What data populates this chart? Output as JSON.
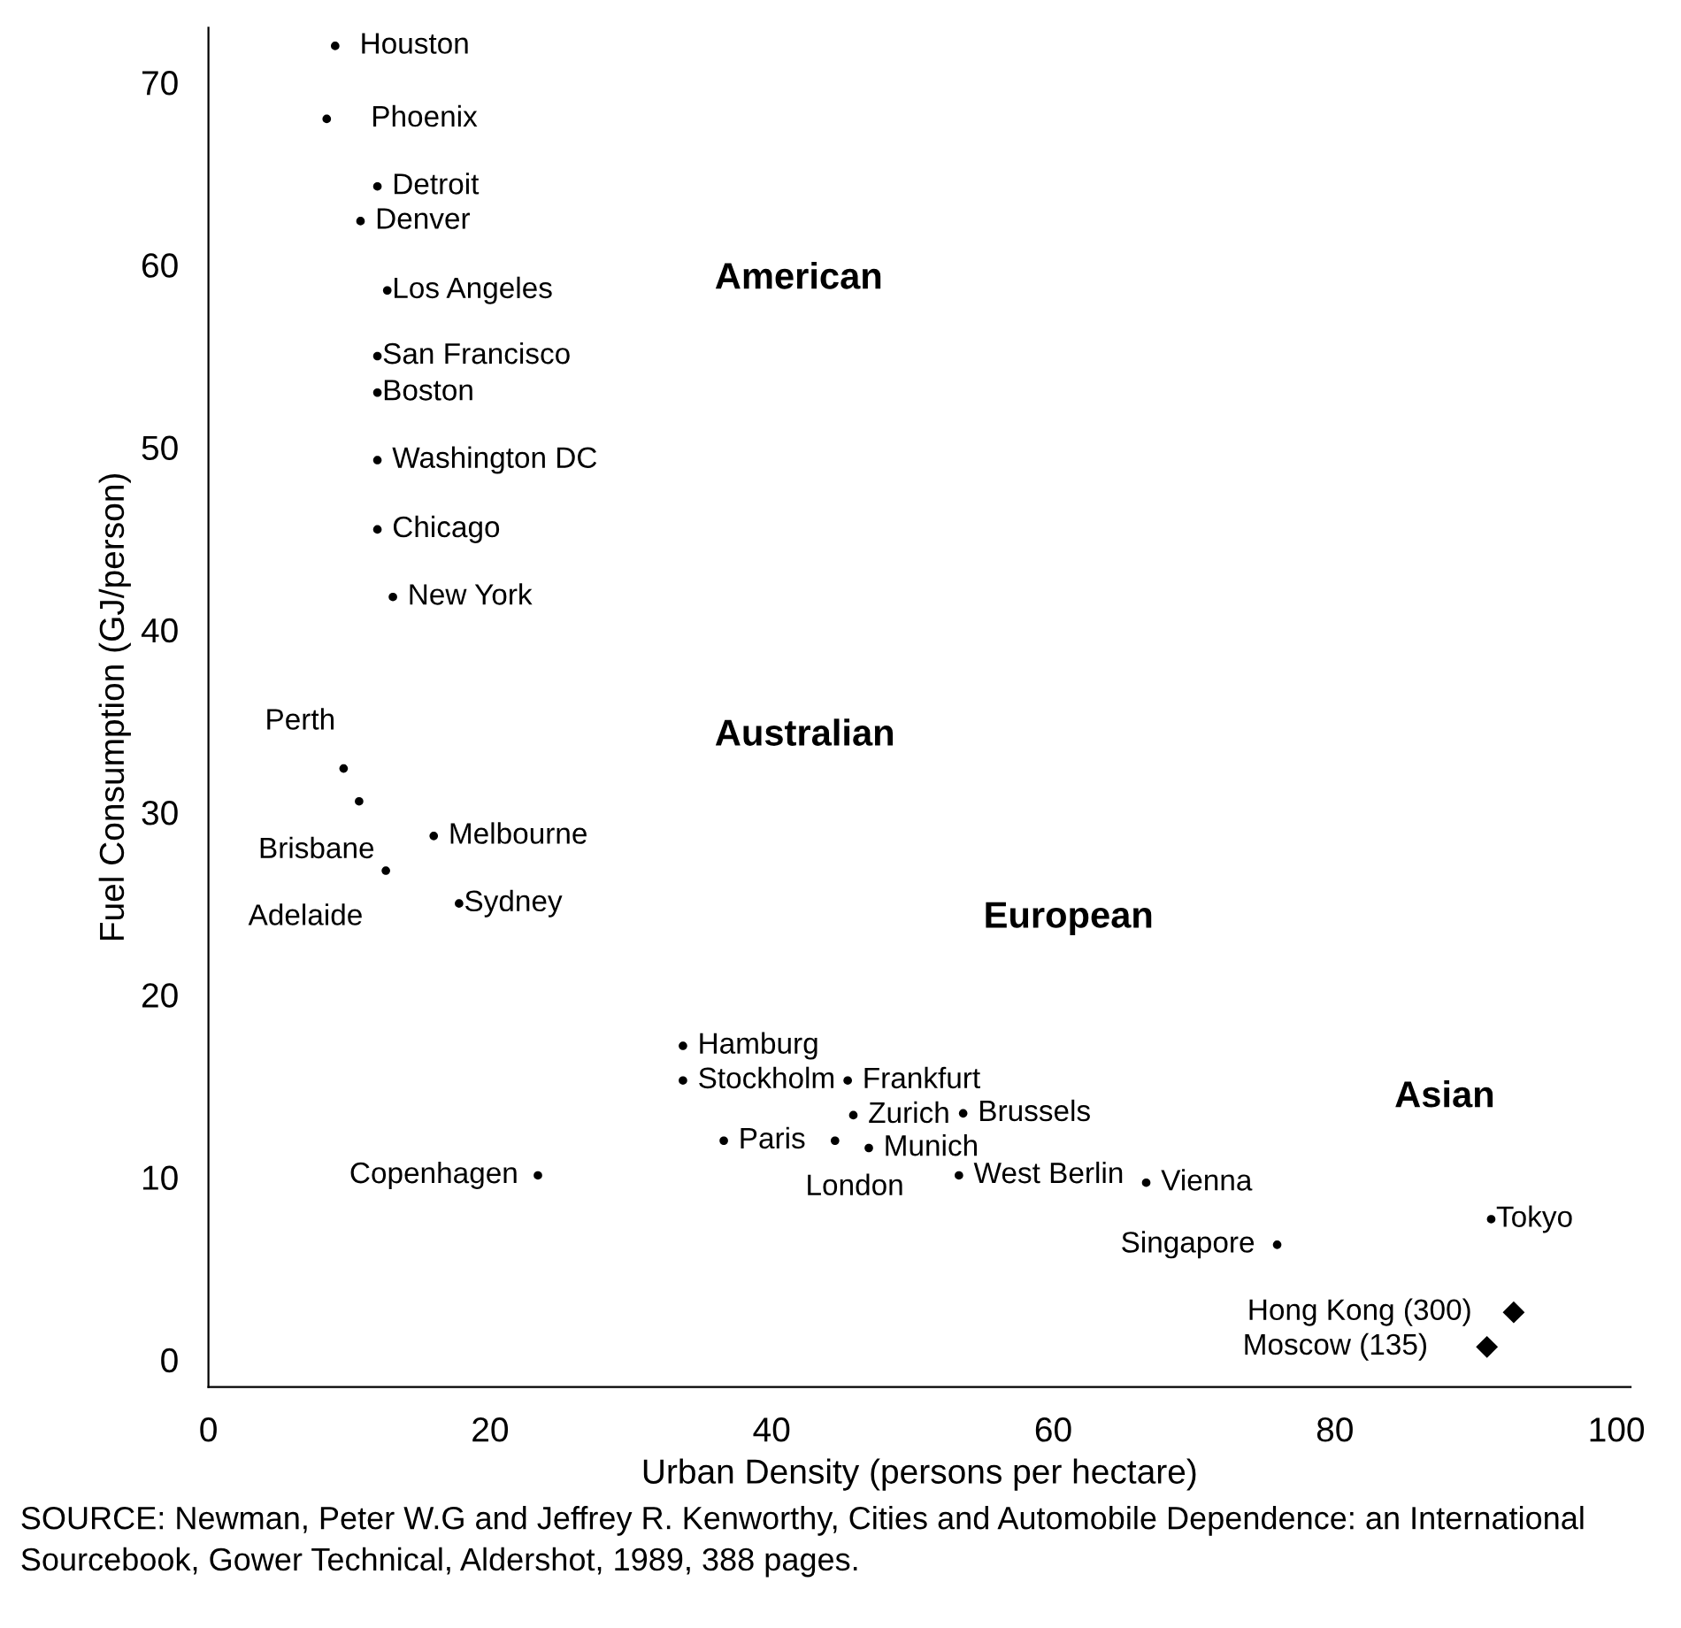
{
  "chart_data": {
    "type": "scatter",
    "xlabel": "Urban Density (persons per hectare)",
    "ylabel": "Fuel Consumption (GJ/person)",
    "xlim": [
      0,
      101
    ],
    "ylim": [
      -1.5,
      73
    ],
    "xticks": [
      0,
      20,
      40,
      60,
      80,
      100
    ],
    "yticks": [
      0,
      10,
      20,
      30,
      40,
      50,
      60,
      70
    ],
    "grid": false,
    "legend": false,
    "series": [
      {
        "color": "#000000",
        "marker": "circle",
        "x": [
          9,
          8.4,
          12.0,
          10.8,
          12.7,
          12.0,
          12.0,
          12.0,
          12.0,
          13.1,
          9.6,
          10.7,
          16.0,
          12.6,
          17.8,
          33.7,
          33.7,
          45.4,
          45.8,
          53.6,
          36.6,
          44.5,
          46.9,
          23.4,
          53.3,
          66.6,
          75.9,
          91.1
        ],
        "values": [
          72,
          68,
          64.3,
          62.4,
          58.6,
          55.0,
          53.0,
          49.3,
          45.5,
          41.8,
          32.4,
          30.6,
          28.7,
          26.8,
          25.0,
          17.2,
          15.3,
          15.3,
          13.4,
          13.5,
          12.0,
          12.0,
          11.6,
          10.1,
          10.1,
          9.7,
          6.3,
          7.7
        ]
      },
      {
        "color": "#000000",
        "marker": "diamond",
        "x": [
          92.7,
          90.8
        ],
        "values": [
          2.6,
          0.7
        ]
      }
    ],
    "annotations": [
      {
        "text": "Houston",
        "x": 9,
        "y": 72
      },
      {
        "text": "Phoenix",
        "x": 8.4,
        "y": 68
      },
      {
        "text": "Detroit",
        "x": 12.0,
        "y": 64.3
      },
      {
        "text": "Denver",
        "x": 10.8,
        "y": 62.4
      },
      {
        "text": "Los Angeles",
        "x": 12.7,
        "y": 58.6
      },
      {
        "text": "San Francisco",
        "x": 12.0,
        "y": 55.0
      },
      {
        "text": "Boston",
        "x": 12.0,
        "y": 53.0
      },
      {
        "text": "Washington DC",
        "x": 12.0,
        "y": 49.3
      },
      {
        "text": "Chicago",
        "x": 12.0,
        "y": 45.5
      },
      {
        "text": "New York",
        "x": 13.1,
        "y": 41.8
      },
      {
        "text": "Perth",
        "x": 9.6,
        "y": 32.4
      },
      {
        "text": "Brisbane",
        "x": 10.7,
        "y": 30.6
      },
      {
        "text": "Melbourne",
        "x": 16.0,
        "y": 28.7
      },
      {
        "text": "Adelaide",
        "x": 12.6,
        "y": 26.8
      },
      {
        "text": "Sydney",
        "x": 17.8,
        "y": 25.0
      },
      {
        "text": "Hamburg",
        "x": 33.7,
        "y": 17.2
      },
      {
        "text": "Stockholm",
        "x": 33.7,
        "y": 15.3
      },
      {
        "text": "Frankfurt",
        "x": 45.4,
        "y": 15.3
      },
      {
        "text": "Zurich",
        "x": 45.8,
        "y": 13.4
      },
      {
        "text": "Brussels",
        "x": 53.6,
        "y": 13.5
      },
      {
        "text": "Paris",
        "x": 36.6,
        "y": 12.0
      },
      {
        "text": "London",
        "x": 44.5,
        "y": 12.0
      },
      {
        "text": "Munich",
        "x": 46.9,
        "y": 11.6
      },
      {
        "text": "Copenhagen",
        "x": 23.4,
        "y": 10.1
      },
      {
        "text": "West Berlin",
        "x": 53.3,
        "y": 10.1
      },
      {
        "text": "Vienna",
        "x": 66.6,
        "y": 9.7
      },
      {
        "text": "Singapore",
        "x": 75.9,
        "y": 6.3
      },
      {
        "text": "Tokyo",
        "x": 91.1,
        "y": 7.7
      },
      {
        "text": "Hong Kong (300)",
        "x": 92.7,
        "y": 2.6
      },
      {
        "text": "Moscow (135)",
        "x": 90.8,
        "y": 0.7
      },
      "American",
      "Australian",
      "European",
      "Asian",
      "SOURCE: Newman, Peter W.G and Jeffrey R. Kenworthy, Cities and Automobile Dependence: an International Sourcebook, Gower Technical, Aldershot, 1989, 388 pages."
    ]
  }
}
